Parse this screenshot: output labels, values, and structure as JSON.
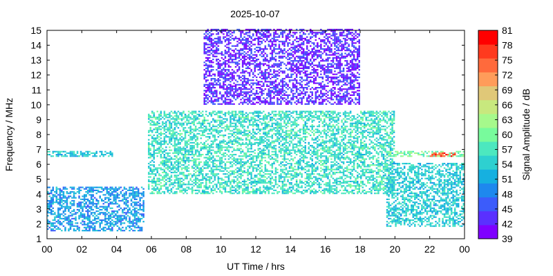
{
  "chart_data": {
    "type": "heatmap",
    "title": "2025-10-07",
    "xlabel": "UT Time / hrs",
    "ylabel": "Frequency / MHz",
    "xlim": [
      0,
      24
    ],
    "ylim": [
      1,
      15
    ],
    "x_ticks": [
      "00",
      "02",
      "04",
      "06",
      "08",
      "10",
      "12",
      "14",
      "16",
      "18",
      "20",
      "22",
      "00"
    ],
    "y_ticks": [
      "1",
      "2",
      "3",
      "4",
      "5",
      "6",
      "7",
      "8",
      "9",
      "10",
      "11",
      "12",
      "13",
      "14",
      "15"
    ],
    "colorbar": {
      "label": "Signal Amplitude / dB",
      "min": 39,
      "max": 81,
      "ticks": [
        "39",
        "42",
        "45",
        "48",
        "51",
        "54",
        "57",
        "60",
        "63",
        "66",
        "69",
        "72",
        "75",
        "78",
        "81"
      ],
      "colors": [
        "#7f00ff",
        "#5a30ff",
        "#3c5cfb",
        "#1e88ee",
        "#16b0e0",
        "#2ed0d0",
        "#4ce8bf",
        "#78fb9c",
        "#a6f98c",
        "#c8e87e",
        "#e0c878",
        "#ff9c5a",
        "#ff6a3c",
        "#ff3a1e",
        "#ff0000"
      ]
    },
    "regions": [
      {
        "name": "low-freq-night",
        "x": [
          0,
          5.5
        ],
        "y": [
          1.5,
          4.5
        ],
        "amplitude": 50
      },
      {
        "name": "6.6MHz-band-early",
        "x": [
          0,
          2
        ],
        "y": [
          6.5,
          6.8
        ],
        "amplitude": 54
      },
      {
        "name": "6.6MHz-band-early-2",
        "x": [
          1.8,
          3.8
        ],
        "y": [
          6.5,
          6.8
        ],
        "amplitude": 54
      },
      {
        "name": "daytime-mid",
        "x": [
          5.8,
          20
        ],
        "y": [
          4,
          9.5
        ],
        "amplitude": 56
      },
      {
        "name": "daytime-high",
        "x": [
          9,
          18
        ],
        "y": [
          10,
          15
        ],
        "amplitude": 43
      },
      {
        "name": "afternoon-low",
        "x": [
          19.5,
          24
        ],
        "y": [
          1.8,
          6
        ],
        "amplitude": 54
      },
      {
        "name": "6.6MHz-band-late",
        "x": [
          19.5,
          24
        ],
        "y": [
          6.5,
          6.8
        ],
        "amplitude": 60
      },
      {
        "name": "hot-band-late",
        "x": [
          22,
          23.5
        ],
        "y": [
          6.5,
          6.7
        ],
        "amplitude": 76
      }
    ]
  }
}
